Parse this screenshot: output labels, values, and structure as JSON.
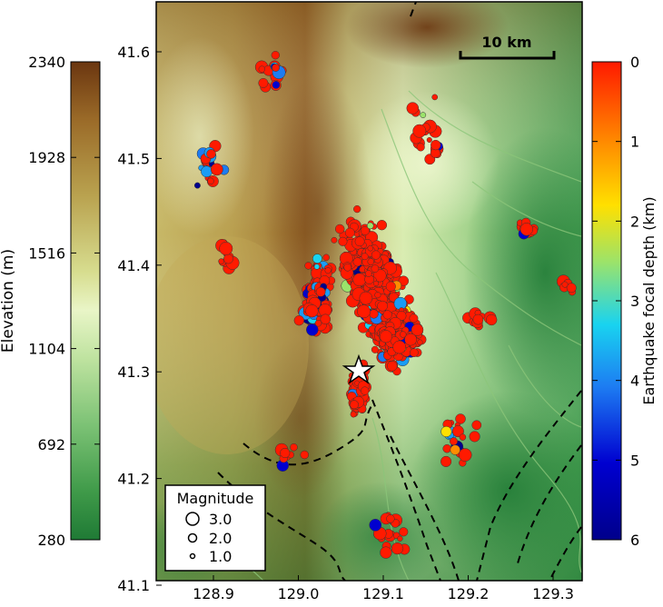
{
  "elevation_colorbar": {
    "label": "Elevation (m)",
    "ticks": [
      "2340",
      "1928",
      "1516",
      "1104",
      "692",
      "280"
    ],
    "stops": [
      "#6b3610",
      "#9a6a28",
      "#b9a24f",
      "#d7dd8f",
      "#e9f5c7",
      "#bfe3a0",
      "#7cc275",
      "#3f9a49",
      "#1f7a35"
    ]
  },
  "depth_colorbar": {
    "label": "Earthquake focal depth (km)",
    "ticks": [
      "0",
      "1",
      "2",
      "3",
      "4",
      "5",
      "6"
    ],
    "stops": [
      "#ff1a00",
      "#ff8c00",
      "#ffe000",
      "#9be36b",
      "#19d3f0",
      "#1d7cf2",
      "#0000d0",
      "#00008b"
    ]
  },
  "map": {
    "lat_ticks": [
      "41.6",
      "41.5",
      "41.4",
      "41.3",
      "41.2",
      "41.1"
    ],
    "lon_ticks": [
      "128.9",
      "129.0",
      "129.1",
      "129.2",
      "129.3"
    ],
    "scalebar_label": "10 km",
    "mainshock_icon": "star-icon"
  },
  "legend": {
    "title": "Magnitude",
    "items": [
      {
        "label": "3.0"
      },
      {
        "label": "2.0"
      },
      {
        "label": "1.0"
      }
    ]
  },
  "colors": {
    "shallow": "#ff1a00",
    "fault": "#000000"
  }
}
